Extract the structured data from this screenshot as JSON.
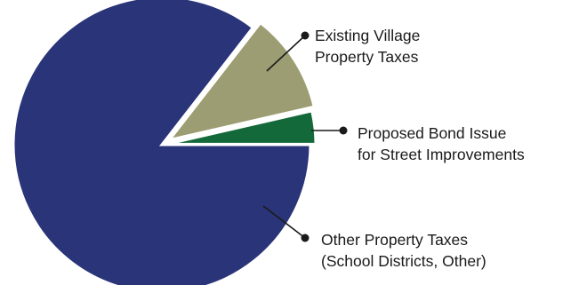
{
  "chart_data": {
    "type": "pie",
    "slices": [
      {
        "id": "other",
        "label_lines": [
          "Other Property Taxes",
          "(School Districts, Other)"
        ],
        "value": 85.5,
        "color": "#2a3478"
      },
      {
        "id": "existing",
        "label_lines": [
          "Existing Village",
          "Property Taxes"
        ],
        "value": 10.9,
        "color": "#9c9d72"
      },
      {
        "id": "bond",
        "label_lines": [
          "Proposed Bond Issue",
          "for Street Improvements"
        ],
        "value": 3.6,
        "color": "#14693a"
      }
    ],
    "legend": "callouts"
  }
}
